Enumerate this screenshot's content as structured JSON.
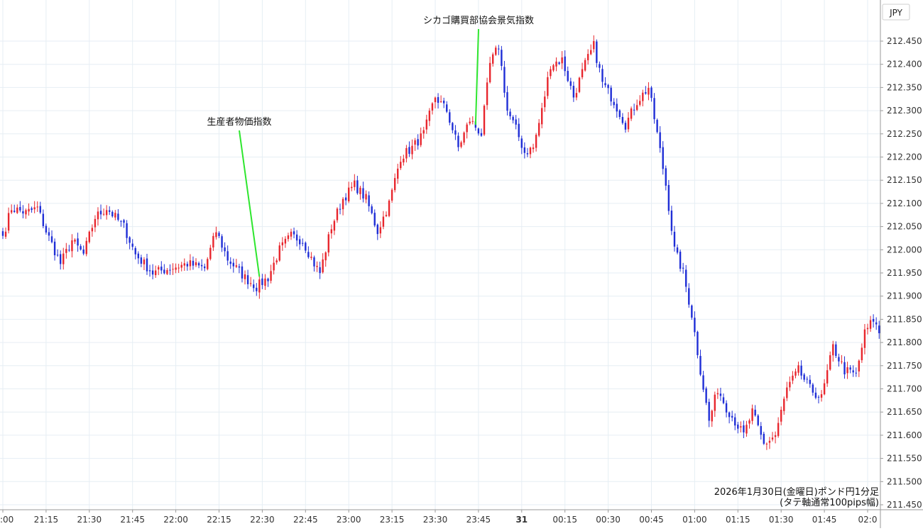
{
  "chart_data": {
    "type": "candlestick",
    "currency_label": "JPY",
    "y_range": [
      211.43,
      212.53
    ],
    "y_ticks": [
      "212.450",
      "212.400",
      "212.350",
      "212.300",
      "212.250",
      "212.200",
      "212.150",
      "212.100",
      "212.050",
      "212.000",
      "211.950",
      "211.900",
      "211.850",
      "211.800",
      "211.750",
      "211.700",
      "211.650",
      "211.600",
      "211.550",
      "211.500",
      "211.450"
    ],
    "x_ticks": [
      ":00",
      "21:15",
      "21:30",
      "21:45",
      "22:00",
      "22:15",
      "22:30",
      "22:45",
      "23:00",
      "23:15",
      "23:30",
      "23:45",
      "31",
      "00:15",
      "00:30",
      "00:45",
      "01:00",
      "01:15",
      "01:30",
      "01:45",
      "02:0"
    ],
    "annotations": [
      {
        "label": "生産者物価指数",
        "time_index": 89
      },
      {
        "label": "シカゴ購買部協会景気指数",
        "time_index": 164
      }
    ],
    "caption_line1": "2026年1月30日(金曜日)ポンド円1分足",
    "caption_line2": "(タテ軸通常100pips幅)",
    "up_color": "#e8262d",
    "down_color": "#1f2ed6",
    "anchor_closes": [
      [
        0,
        212.03
      ],
      [
        3,
        212.09
      ],
      [
        8,
        212.08
      ],
      [
        12,
        212.09
      ],
      [
        15,
        212.04
      ],
      [
        20,
        211.97
      ],
      [
        24,
        212.02
      ],
      [
        28,
        211.99
      ],
      [
        32,
        212.07
      ],
      [
        36,
        212.09
      ],
      [
        42,
        212.05
      ],
      [
        46,
        211.99
      ],
      [
        52,
        211.95
      ],
      [
        58,
        211.96
      ],
      [
        64,
        211.97
      ],
      [
        70,
        211.96
      ],
      [
        74,
        212.04
      ],
      [
        78,
        211.98
      ],
      [
        84,
        211.94
      ],
      [
        88,
        211.92
      ],
      [
        92,
        211.94
      ],
      [
        96,
        212.0
      ],
      [
        100,
        212.03
      ],
      [
        104,
        212.02
      ],
      [
        108,
        211.97
      ],
      [
        110,
        211.95
      ],
      [
        114,
        212.05
      ],
      [
        118,
        212.11
      ],
      [
        122,
        212.14
      ],
      [
        126,
        212.11
      ],
      [
        130,
        212.04
      ],
      [
        134,
        212.1
      ],
      [
        138,
        212.2
      ],
      [
        142,
        212.22
      ],
      [
        146,
        212.25
      ],
      [
        150,
        212.33
      ],
      [
        154,
        212.3
      ],
      [
        158,
        212.22
      ],
      [
        162,
        212.28
      ],
      [
        166,
        212.25
      ],
      [
        169,
        212.4
      ],
      [
        172,
        212.44
      ],
      [
        175,
        212.3
      ],
      [
        178,
        212.26
      ],
      [
        181,
        212.21
      ],
      [
        184,
        212.22
      ],
      [
        187,
        212.3
      ],
      [
        190,
        212.4
      ],
      [
        194,
        212.41
      ],
      [
        198,
        212.33
      ],
      [
        202,
        212.4
      ],
      [
        205,
        212.44
      ],
      [
        208,
        212.36
      ],
      [
        212,
        212.32
      ],
      [
        216,
        212.27
      ],
      [
        220,
        212.32
      ],
      [
        224,
        212.35
      ],
      [
        227,
        212.25
      ],
      [
        230,
        212.14
      ],
      [
        233,
        212.0
      ],
      [
        236,
        211.95
      ],
      [
        239,
        211.86
      ],
      [
        242,
        211.74
      ],
      [
        245,
        211.63
      ],
      [
        248,
        211.7
      ],
      [
        251,
        211.66
      ],
      [
        254,
        211.63
      ],
      [
        257,
        211.6
      ],
      [
        260,
        211.65
      ],
      [
        264,
        211.58
      ],
      [
        268,
        211.6
      ],
      [
        272,
        211.7
      ],
      [
        276,
        211.74
      ],
      [
        280,
        211.7
      ],
      [
        284,
        211.68
      ],
      [
        288,
        211.79
      ],
      [
        292,
        211.74
      ],
      [
        296,
        211.73
      ],
      [
        299,
        211.82
      ],
      [
        302,
        211.85
      ],
      [
        304,
        211.82
      ]
    ]
  }
}
